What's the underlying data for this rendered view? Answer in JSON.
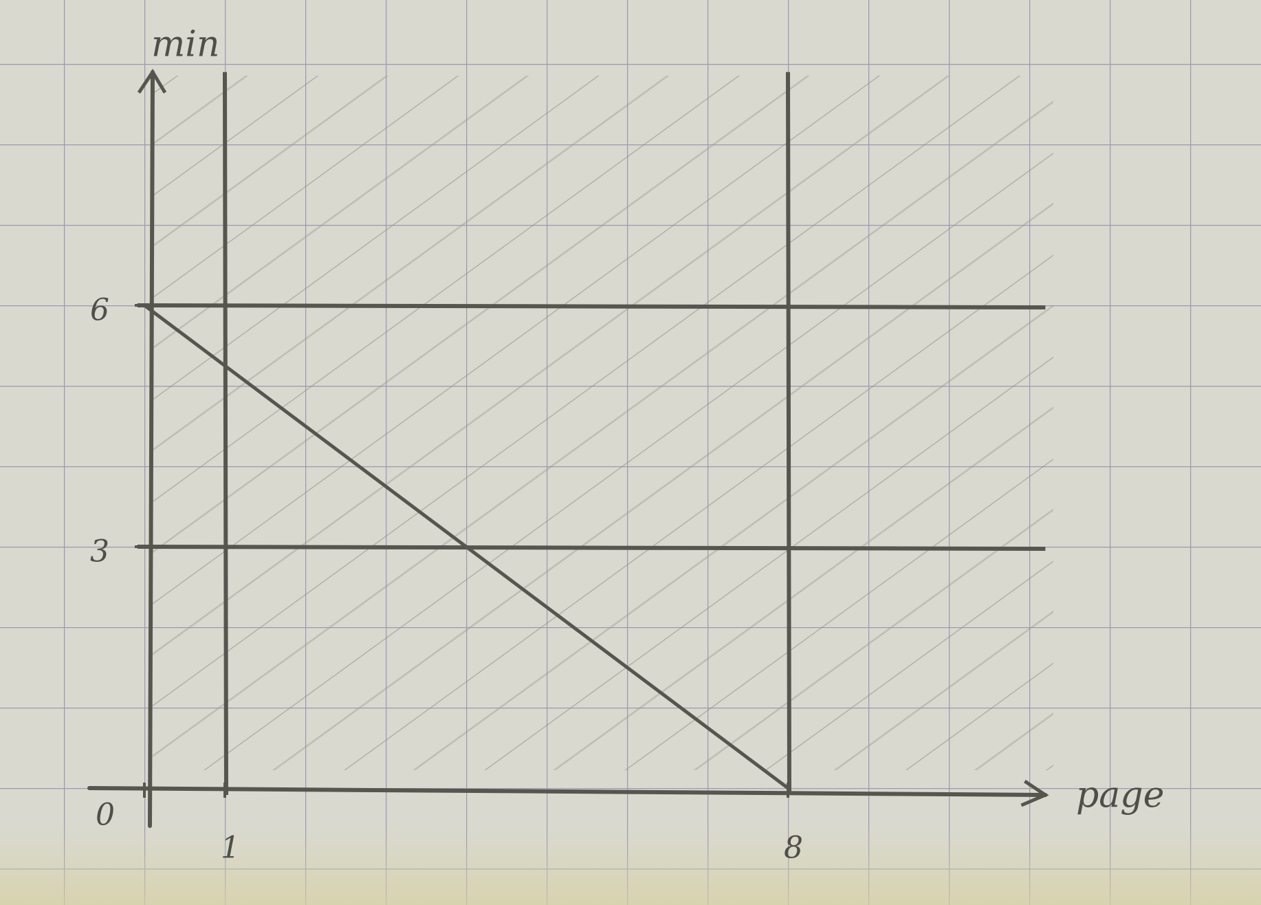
{
  "chart_data": {
    "type": "line",
    "x_label": "page",
    "y_label": "min",
    "x": [
      0,
      8
    ],
    "series": [
      {
        "values": [
          6,
          0
        ],
        "color": "#56564f"
      }
    ],
    "xlim": [
      0,
      11.2
    ],
    "ylim": [
      0,
      8.9
    ],
    "xticks": [
      0,
      1,
      8
    ],
    "yticks": [
      3,
      6
    ],
    "vlines": [
      1,
      8
    ],
    "hlines": [
      3,
      6
    ],
    "color": "#56564f"
  }
}
